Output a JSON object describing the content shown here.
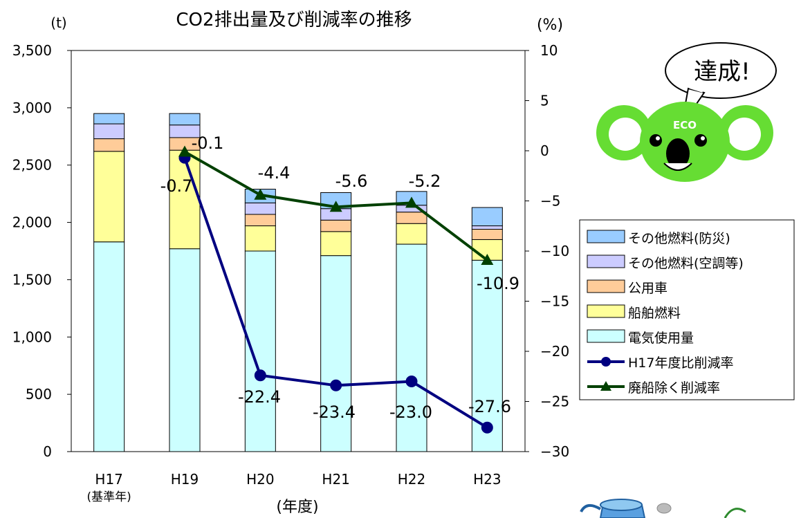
{
  "chart_data": {
    "type": "bar",
    "title": "CO2排出量及び削減率の推移",
    "y_left_unit": "(t)",
    "y_right_unit": "(%)",
    "xlabel": "(年度)",
    "categories": [
      "H17",
      "H19",
      "H20",
      "H21",
      "H22",
      "H23"
    ],
    "category_sublabels": [
      "(基準年)",
      "",
      "",
      "",
      "",
      ""
    ],
    "ylim_left": [
      0,
      3500
    ],
    "ylim_right": [
      -30,
      10
    ],
    "yticks_left": [
      "0",
      "500",
      "1,000",
      "1,500",
      "2,000",
      "2,500",
      "3,000",
      "3,500"
    ],
    "yticks_right": [
      "−30",
      "−25",
      "−20",
      "−15",
      "−10",
      "−5",
      "0",
      "5",
      "10"
    ],
    "stacked_series": [
      {
        "name": "電気使用量",
        "color": "#ccffff",
        "values": [
          1830,
          1770,
          1750,
          1710,
          1810,
          1670
        ]
      },
      {
        "name": "船舶燃料",
        "color": "#ffff99",
        "values": [
          790,
          860,
          220,
          210,
          180,
          180
        ]
      },
      {
        "name": "公用車",
        "color": "#ffcc99",
        "values": [
          110,
          110,
          100,
          100,
          100,
          90
        ]
      },
      {
        "name": "その他燃料(空調等)",
        "color": "#ccccff",
        "values": [
          130,
          110,
          100,
          100,
          60,
          30
        ]
      },
      {
        "name": "その他燃料(防災)",
        "color": "#99ccff",
        "values": [
          90,
          100,
          120,
          140,
          120,
          160
        ]
      }
    ],
    "line_series": [
      {
        "name": "H17年度比削減率",
        "color": "#000080",
        "marker": "circle",
        "values": [
          null,
          -0.7,
          -22.4,
          -23.4,
          -23.0,
          -27.6
        ],
        "labels": [
          "",
          "-0.7",
          "-22.4",
          "-23.4",
          "-23.0",
          "-27.6"
        ]
      },
      {
        "name": "廃船除く削減率",
        "color": "#004000",
        "marker": "triangle",
        "values": [
          null,
          -0.1,
          -4.4,
          -5.6,
          -5.2,
          -10.9
        ],
        "labels": [
          "",
          "-0.1",
          "-4.4",
          "-5.6",
          "-5.2",
          "-10.9"
        ]
      }
    ],
    "legend_position": "right",
    "grid": false
  },
  "mascot": {
    "speech": "達成!",
    "badge": "ECO"
  }
}
